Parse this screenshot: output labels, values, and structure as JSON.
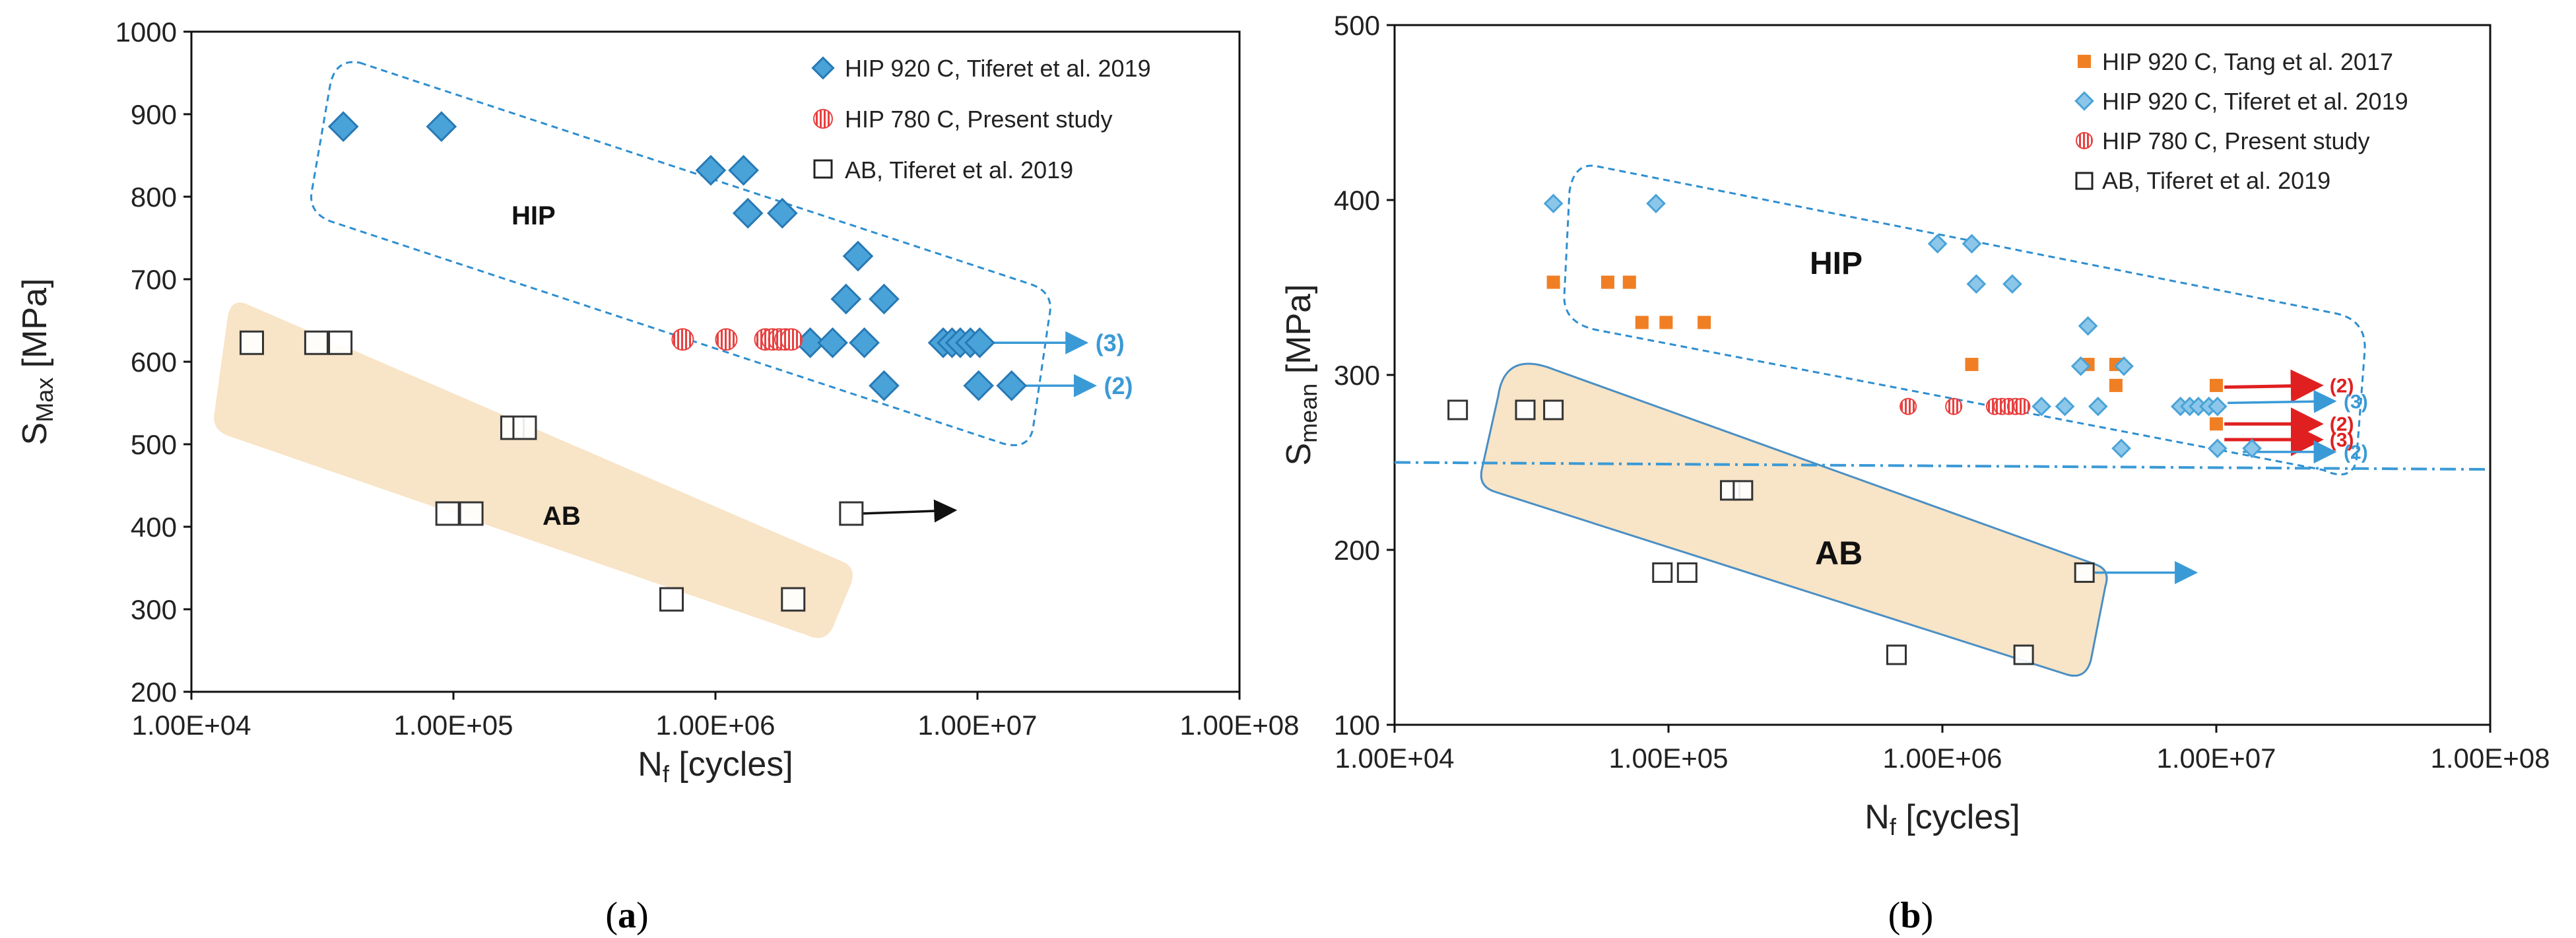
{
  "colors": {
    "hip920": "#4aa3d8",
    "hip920_dark": "#2779b5",
    "hip780": "#e84040",
    "tang": "#f07f24",
    "ab": "#333333",
    "ab_region": "#f8e4c6",
    "hip_region_border": "#2d8ed0",
    "limit_line": "#3a9ad6",
    "arrow_blue": "#3a9ad6",
    "arrow_red": "#e02020"
  },
  "chart_data": [
    {
      "id": "a",
      "type": "scatter",
      "panel_label": "a",
      "xlabel": "Nf [cycles]",
      "xlabel_main": "N",
      "xlabel_sub": "f",
      "xlabel_rest": " [cycles]",
      "ylabel_main": "S",
      "ylabel_sub": "Max",
      "ylabel_rest": " [MPa]",
      "xscale": "log",
      "xlim": [
        10000,
        100000000
      ],
      "ylim": [
        200,
        1000
      ],
      "xticks": [
        10000,
        100000,
        1000000,
        10000000,
        100000000
      ],
      "xtick_labels": [
        "1.00E+04",
        "1.00E+05",
        "1.00E+06",
        "1.00E+07",
        "1.00E+08"
      ],
      "yticks": [
        200,
        300,
        400,
        500,
        600,
        700,
        800,
        900,
        1000
      ],
      "ytick_labels": [
        "200",
        "300",
        "400",
        "500",
        "600",
        "700",
        "800",
        "900",
        "1000"
      ],
      "legend_position": "top-right",
      "series": [
        {
          "name": "HIP 920 C, Tiferet et al. 2019",
          "marker": "diamond",
          "points": [
            [
              38000,
              885
            ],
            [
              90000,
              885
            ],
            [
              960000,
              832
            ],
            [
              1280000,
              832
            ],
            [
              1330000,
              780
            ],
            [
              1800000,
              780
            ],
            [
              3500000,
              728
            ],
            [
              3150000,
              676
            ],
            [
              4400000,
              676
            ],
            [
              2300000,
              623
            ],
            [
              2800000,
              623
            ],
            [
              3700000,
              623
            ],
            [
              7400000,
              623
            ],
            [
              8000000,
              623
            ],
            [
              8600000,
              623
            ],
            [
              9400000,
              623
            ],
            [
              10200000,
              623
            ],
            [
              4400000,
              571
            ],
            [
              10100000,
              571
            ],
            [
              13500000,
              571
            ]
          ]
        },
        {
          "name": "HIP 780 C, Present study",
          "marker": "hatched-circle",
          "points": [
            [
              750000,
              627
            ],
            [
              1100000,
              627
            ],
            [
              1550000,
              627
            ],
            [
              1650000,
              627
            ],
            [
              1750000,
              627
            ],
            [
              1850000,
              627
            ],
            [
              1950000,
              627
            ]
          ]
        },
        {
          "name": "AB, Tiferet et al. 2019",
          "marker": "open-square",
          "points": [
            [
              17000,
              623
            ],
            [
              30000,
              623
            ],
            [
              37000,
              623
            ],
            [
              168000,
              520
            ],
            [
              187000,
              520
            ],
            [
              95000,
              416
            ],
            [
              117000,
              416
            ],
            [
              3300000,
              416
            ],
            [
              680000,
              312
            ],
            [
              1980000,
              312
            ]
          ]
        }
      ],
      "regions": [
        {
          "label": "HIP",
          "kind": "dashed-outline"
        },
        {
          "label": "AB",
          "kind": "shaded"
        }
      ],
      "runouts": [
        {
          "from": [
            10500000,
            623
          ],
          "to": [
            26000000,
            623
          ],
          "label": "(3)",
          "color": "blue"
        },
        {
          "from": [
            14000000,
            571
          ],
          "to": [
            28000000,
            571
          ],
          "label": "(2)",
          "color": "blue"
        },
        {
          "from": [
            3600000,
            416
          ],
          "to": [
            8200000,
            420
          ],
          "label": "",
          "color": "black"
        }
      ]
    },
    {
      "id": "b",
      "type": "scatter",
      "panel_label": "b",
      "xlabel": "Nf [cycles]",
      "xlabel_main": "N",
      "xlabel_sub": "f",
      "xlabel_rest": " [cycles]",
      "ylabel_main": "S",
      "ylabel_sub": "mean",
      "ylabel_rest": " [MPa]",
      "xscale": "log",
      "xlim": [
        10000,
        100000000
      ],
      "ylim": [
        100,
        500
      ],
      "xticks": [
        10000,
        100000,
        1000000,
        10000000,
        100000000
      ],
      "xtick_labels": [
        "1.00E+04",
        "1.00E+05",
        "1.00E+06",
        "1.00E+07",
        "1.00E+08"
      ],
      "yticks": [
        100,
        200,
        300,
        400,
        500
      ],
      "ytick_labels": [
        "100",
        "200",
        "300",
        "400",
        "500"
      ],
      "legend_position": "top-right",
      "series": [
        {
          "name": "HIP 920 C, Tang et al. 2017",
          "marker": "filled-square",
          "points": [
            [
              38000,
              353
            ],
            [
              60000,
              353
            ],
            [
              72000,
              353
            ],
            [
              80000,
              330
            ],
            [
              98000,
              330
            ],
            [
              135000,
              330
            ],
            [
              1280000,
              306
            ],
            [
              3400000,
              306
            ],
            [
              4300000,
              306
            ],
            [
              4300000,
              294
            ],
            [
              10000000,
              294
            ],
            [
              10000000,
              272
            ]
          ]
        },
        {
          "name": "HIP 920 C, Tiferet et al. 2019",
          "marker": "diamond",
          "points": [
            [
              38000,
              398
            ],
            [
              90000,
              398
            ],
            [
              960000,
              375
            ],
            [
              1280000,
              375
            ],
            [
              1330000,
              352
            ],
            [
              1800000,
              352
            ],
            [
              3400000,
              328
            ],
            [
              3200000,
              305
            ],
            [
              4600000,
              305
            ],
            [
              2300000,
              282
            ],
            [
              2800000,
              282
            ],
            [
              3700000,
              282
            ],
            [
              7400000,
              282
            ],
            [
              8000000,
              282
            ],
            [
              8600000,
              282
            ],
            [
              9400000,
              282
            ],
            [
              10100000,
              282
            ],
            [
              4500000,
              258
            ],
            [
              10100000,
              258
            ],
            [
              13500000,
              258
            ]
          ]
        },
        {
          "name": "HIP 780 C, Present study",
          "marker": "hatched-circle",
          "points": [
            [
              750000,
              282
            ],
            [
              1100000,
              282
            ],
            [
              1550000,
              282
            ],
            [
              1650000,
              282
            ],
            [
              1750000,
              282
            ],
            [
              1850000,
              282
            ],
            [
              1950000,
              282
            ]
          ]
        },
        {
          "name": "AB, Tiferet et al. 2019",
          "marker": "open-square",
          "points": [
            [
              17000,
              280
            ],
            [
              30000,
              280
            ],
            [
              38000,
              280
            ],
            [
              168000,
              234
            ],
            [
              187000,
              234
            ],
            [
              95000,
              187
            ],
            [
              117000,
              187
            ],
            [
              3300000,
              187
            ],
            [
              680000,
              140
            ],
            [
              1980000,
              140
            ]
          ]
        }
      ],
      "regions": [
        {
          "label": "HIP",
          "kind": "dashed-outline"
        },
        {
          "label": "AB",
          "kind": "shaded-outlined"
        }
      ],
      "reference_line": {
        "y_start": 250,
        "y_end": 246,
        "style": "dash-dot"
      },
      "runouts": [
        {
          "from": [
            10700000,
            293
          ],
          "to": [
            24000000,
            294
          ],
          "label": "(2)",
          "color": "red"
        },
        {
          "from": [
            11000000,
            284
          ],
          "to": [
            27000000,
            285
          ],
          "label": "(3)",
          "color": "blue"
        },
        {
          "from": [
            10700000,
            272
          ],
          "to": [
            24000000,
            272
          ],
          "label": "(2)",
          "color": "red"
        },
        {
          "from": [
            10700000,
            263
          ],
          "to": [
            24000000,
            263
          ],
          "label": "(3)",
          "color": "red"
        },
        {
          "from": [
            12500000,
            256
          ],
          "to": [
            27000000,
            256
          ],
          "label": "(2)",
          "color": "blue"
        },
        {
          "from": [
            3600000,
            187
          ],
          "to": [
            8400000,
            187
          ],
          "label": "",
          "color": "blue"
        }
      ]
    }
  ]
}
